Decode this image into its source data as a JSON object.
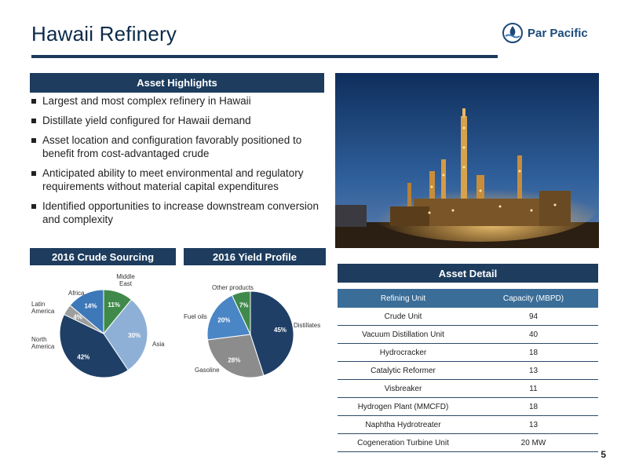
{
  "header": {
    "title": "Hawaii Refinery",
    "logo_text": "Par Pacific"
  },
  "highlights": {
    "heading": "Asset Highlights",
    "items": [
      "Largest and most complex refinery in Hawaii",
      "Distillate yield configured for Hawaii demand",
      "Asset location and configuration favorably positioned to benefit from cost-advantaged crude",
      "Anticipated ability to meet environmental and regulatory requirements without material capital expenditures",
      "Identified opportunities to increase downstream conversion and complexity"
    ]
  },
  "crude_heading": "2016 Crude Sourcing",
  "yield_heading": "2016 Yield Profile",
  "detail": {
    "heading": "Asset Detail",
    "columns": [
      "Refining Unit",
      "Capacity (MBPD)"
    ],
    "rows": [
      [
        "Crude Unit",
        "94"
      ],
      [
        "Vacuum Distillation Unit",
        "40"
      ],
      [
        "Hydrocracker",
        "18"
      ],
      [
        "Catalytic Reformer",
        "13"
      ],
      [
        "Visbreaker",
        "11"
      ],
      [
        "Hydrogen Plant (MMCFD)",
        "18"
      ],
      [
        "Naphtha Hydrotreater",
        "13"
      ],
      [
        "Cogeneration Turbine Unit",
        "20 MW"
      ]
    ]
  },
  "page_number": "5",
  "chart_data": [
    {
      "type": "pie",
      "title": "2016 Crude Sourcing",
      "slices": [
        {
          "label": "Middle East",
          "value": 11,
          "pct_text": "11%",
          "color": "#3f8a4a"
        },
        {
          "label": "Asia",
          "value": 30,
          "pct_text": "30%",
          "color": "#8fb0d6"
        },
        {
          "label": "North America",
          "value": 42,
          "pct_text": "42%",
          "color": "#1f3f66"
        },
        {
          "label": "Latin America",
          "value": 4,
          "pct_text": "4%",
          "color": "#9e9e9e"
        },
        {
          "label": "Africa",
          "value": 14,
          "pct_text": "14%",
          "color": "#3d78b8"
        }
      ]
    },
    {
      "type": "pie",
      "title": "2016 Yield Profile",
      "slices": [
        {
          "label": "Distillates",
          "value": 45,
          "pct_text": "45%",
          "color": "#1f3f66"
        },
        {
          "label": "Gasoline",
          "value": 28,
          "pct_text": "28%",
          "color": "#8c8c8c"
        },
        {
          "label": "Fuel oils",
          "value": 20,
          "pct_text": "20%",
          "color": "#4a86c5"
        },
        {
          "label": "Other products",
          "value": 7,
          "pct_text": "7%",
          "color": "#3f8a4a"
        }
      ]
    }
  ]
}
